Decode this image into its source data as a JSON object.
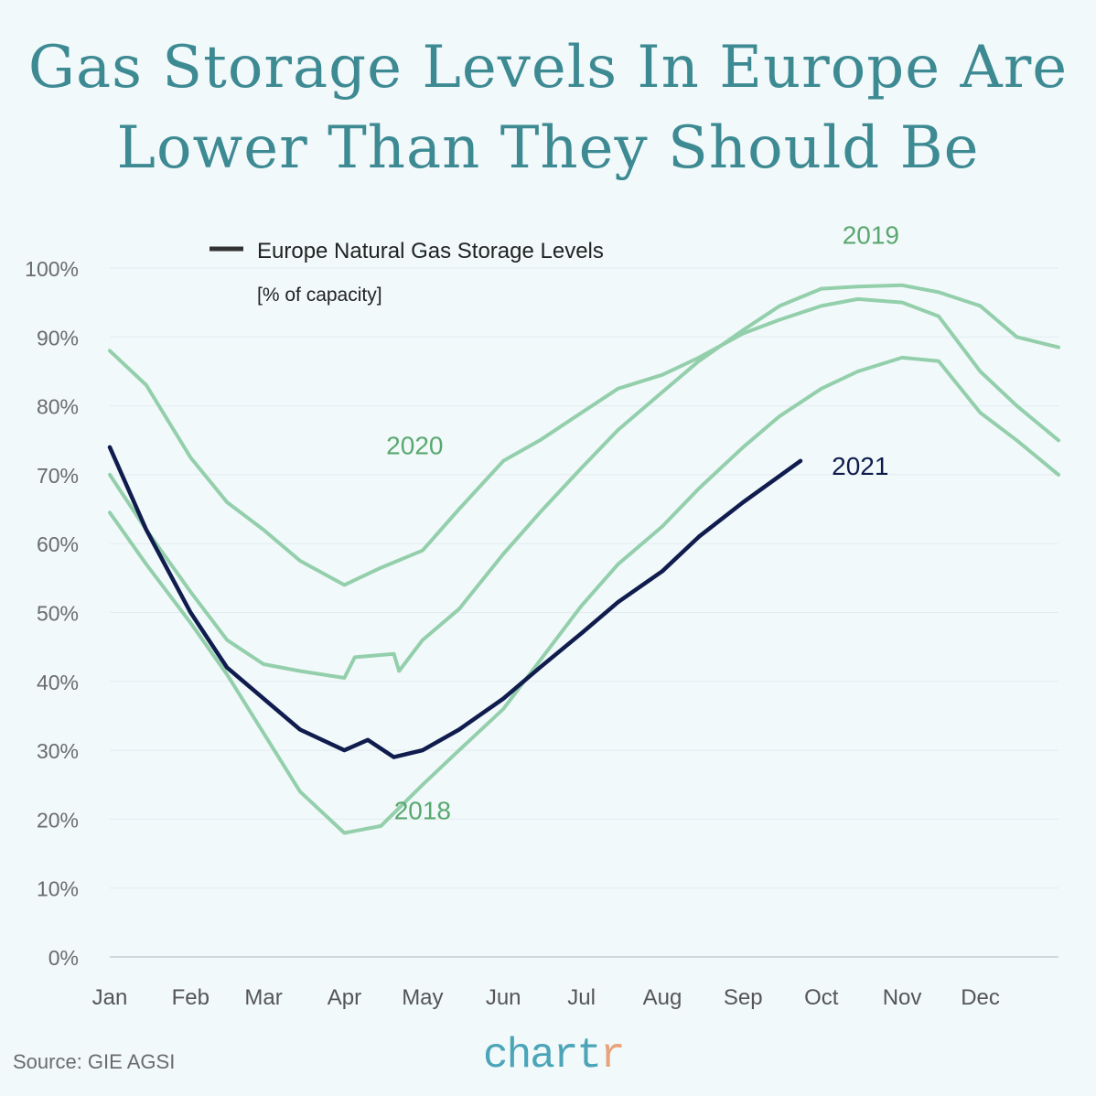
{
  "title_lines": [
    "Gas Storage Levels In Europe Are",
    "Lower Than They Should Be"
  ],
  "source": "Source: GIE AGSI",
  "logo": {
    "main": "chart",
    "accent": "r"
  },
  "colors": {
    "title": "#3d8a93",
    "past_years": "#94cfac",
    "past_label": "#5aa86f",
    "current": "#0f1c4d",
    "background": "#f1f9fb"
  },
  "chart_data": {
    "type": "line",
    "legend": {
      "label": "Europe Natural Gas Storage Levels",
      "sublabel": "[% of capacity]",
      "placement": "top-left"
    },
    "ylim": [
      0,
      100
    ],
    "yticks": [
      0,
      10,
      20,
      30,
      40,
      50,
      60,
      70,
      80,
      90,
      100
    ],
    "ytick_labels": [
      "0%",
      "10%",
      "20%",
      "30%",
      "40%",
      "50%",
      "60%",
      "70%",
      "80%",
      "90%",
      "100%"
    ],
    "xtick_labels": [
      "Jan",
      "Feb",
      "Mar",
      "Apr",
      "May",
      "Jun",
      "Jul",
      "Aug",
      "Sep",
      "Oct",
      "Nov",
      "Dec"
    ],
    "grid": "horizontal",
    "series": [
      {
        "name": "2018",
        "x": [
          "01-01",
          "01-15",
          "02-01",
          "02-15",
          "03-01",
          "03-15",
          "04-01",
          "04-15",
          "05-01",
          "05-15",
          "06-01",
          "06-15",
          "07-01",
          "07-15",
          "08-01",
          "08-15",
          "09-01",
          "09-15",
          "10-01",
          "10-15",
          "11-01",
          "11-15",
          "12-01",
          "12-15",
          "12-31"
        ],
        "y": [
          64.5,
          57,
          48.5,
          41,
          32.5,
          24,
          18,
          19,
          25,
          30,
          36,
          43,
          51,
          57,
          62.5,
          68,
          74,
          78.5,
          82.5,
          85,
          87,
          86.5,
          79,
          75,
          70
        ]
      },
      {
        "name": "2019",
        "x": [
          "01-01",
          "01-15",
          "02-01",
          "02-15",
          "03-01",
          "03-15",
          "04-01",
          "04-05",
          "04-20",
          "04-22",
          "05-01",
          "05-15",
          "06-01",
          "06-15",
          "07-01",
          "07-15",
          "08-01",
          "08-15",
          "09-01",
          "09-15",
          "10-01",
          "10-15",
          "11-01",
          "11-15",
          "12-01",
          "12-15",
          "12-31"
        ],
        "y": [
          70,
          62,
          53,
          46,
          42.5,
          41.5,
          40.5,
          43.5,
          44,
          41.5,
          46,
          50.5,
          58.5,
          64.5,
          71,
          76.5,
          82,
          86.5,
          91,
          94.5,
          97,
          97.3,
          97.5,
          96.5,
          94.5,
          90,
          88.5
        ]
      },
      {
        "name": "2020",
        "x": [
          "01-01",
          "01-15",
          "02-01",
          "02-15",
          "03-01",
          "03-15",
          "04-01",
          "04-15",
          "05-01",
          "05-15",
          "06-01",
          "06-15",
          "07-01",
          "07-15",
          "08-01",
          "08-15",
          "09-01",
          "09-15",
          "10-01",
          "10-15",
          "11-01",
          "11-15",
          "12-01",
          "12-15",
          "12-31"
        ],
        "y": [
          88,
          83,
          72.5,
          66,
          62,
          57.5,
          54,
          56.5,
          59,
          65,
          72,
          75,
          79,
          82.5,
          84.5,
          87,
          90.5,
          92.5,
          94.5,
          95.5,
          95,
          93,
          85,
          80,
          75
        ]
      },
      {
        "name": "2021",
        "x": [
          "01-01",
          "01-15",
          "02-01",
          "02-15",
          "03-01",
          "03-15",
          "04-01",
          "04-10",
          "04-20",
          "05-01",
          "05-15",
          "06-01",
          "06-15",
          "07-01",
          "07-15",
          "08-01",
          "08-15",
          "09-01",
          "09-23"
        ],
        "y": [
          74,
          62,
          50,
          42,
          37.5,
          33,
          30,
          31.5,
          29,
          30,
          33,
          37.5,
          42,
          47,
          51.5,
          56,
          61,
          66,
          72
        ]
      }
    ]
  }
}
